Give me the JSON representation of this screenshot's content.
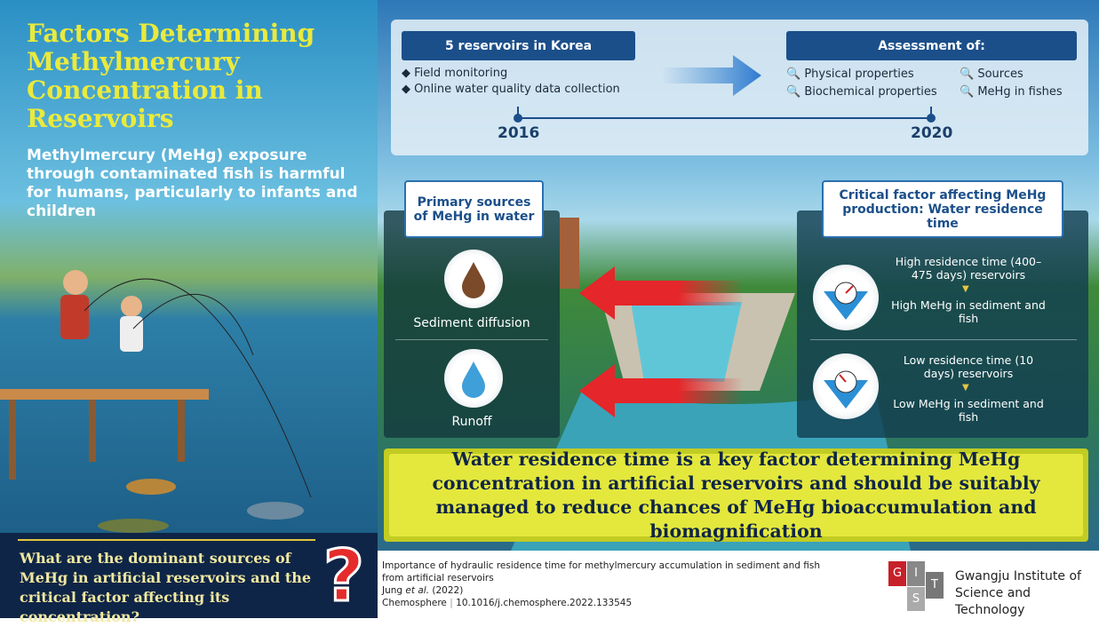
{
  "left": {
    "title": "Factors Determining Methylmercury Concentration in Reservoirs",
    "intro": "Methylmercury (MeHg) exposure through contaminated fish is harmful for humans, particularly to infants and children",
    "question": "What are the dominant sources of MeHg in artificial reservoirs and the critical factor affecting its concentration?"
  },
  "timeline": {
    "start": {
      "header": "5 reservoirs in Korea",
      "items": [
        "Field monitoring",
        "Online water quality data collection"
      ],
      "year": "2016"
    },
    "end": {
      "header": "Assessment of:",
      "items": [
        "Physical properties",
        "Sources",
        "Biochemical properties",
        "MeHg in fishes"
      ],
      "year": "2020"
    }
  },
  "sources": {
    "title": "Primary sources of MeHg in water",
    "items": [
      "Sediment diffusion",
      "Runoff"
    ]
  },
  "critical": {
    "title": "Critical factor affecting MeHg production: Water residence time",
    "rows": [
      {
        "condition": "High residence time (400–475 days) reservoirs",
        "result": "High MeHg in sediment and fish"
      },
      {
        "condition": "Low residence time (10 days) reservoirs",
        "result": "Low MeHg in sediment and fish"
      }
    ]
  },
  "conclusion": "Water residence time is a key factor determining MeHg concentration in artificial reservoirs and should be suitably managed to reduce chances of MeHg bioaccumulation and biomagnification",
  "footer": {
    "paper_title": "Importance of hydraulic residence time for methylmercury accumulation in sediment and fish from artificial reservoirs",
    "author": "Jung",
    "etal": "et al.",
    "year": "(2022)",
    "journal": "Chemosphere",
    "doi": "10.1016/j.chemosphere.2022.133545",
    "logo": [
      "G",
      "I",
      "S",
      "T"
    ],
    "institute": "Gwangju Institute of Science and Technology"
  }
}
